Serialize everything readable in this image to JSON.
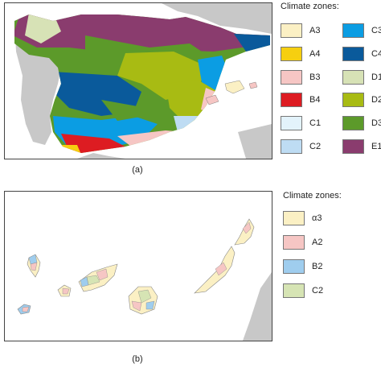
{
  "panel_a": {
    "caption": "(a)",
    "legend_title": "Climate zones:",
    "zones": [
      {
        "label": "A3",
        "color": "#fbf0c4"
      },
      {
        "label": "A4",
        "color": "#f6cf10"
      },
      {
        "label": "B3",
        "color": "#f6c6c4"
      },
      {
        "label": "B4",
        "color": "#dd1c22"
      },
      {
        "label": "C1",
        "color": "#e3f3fb"
      },
      {
        "label": "C2",
        "color": "#bedcf3"
      },
      {
        "label": "C3",
        "color": "#0b9de3"
      },
      {
        "label": "C4",
        "color": "#0a5a9b"
      },
      {
        "label": "D1",
        "color": "#d7e2b6"
      },
      {
        "label": "D2",
        "color": "#a8bb13"
      },
      {
        "label": "D3",
        "color": "#5c9a2a"
      },
      {
        "label": "E1",
        "color": "#8a3c6e"
      }
    ]
  },
  "panel_b": {
    "caption": "(b)",
    "legend_title": "Climate zones:",
    "zones": [
      {
        "label": "α3",
        "color": "#fbf0c4"
      },
      {
        "label": "A2",
        "color": "#f6c6c4"
      },
      {
        "label": "B2",
        "color": "#9fcdee"
      },
      {
        "label": "C2",
        "color": "#d6e4b4"
      }
    ]
  },
  "colors": {
    "land_outside": "#c8c8c8",
    "sea": "#ffffff",
    "border": "#444444"
  }
}
